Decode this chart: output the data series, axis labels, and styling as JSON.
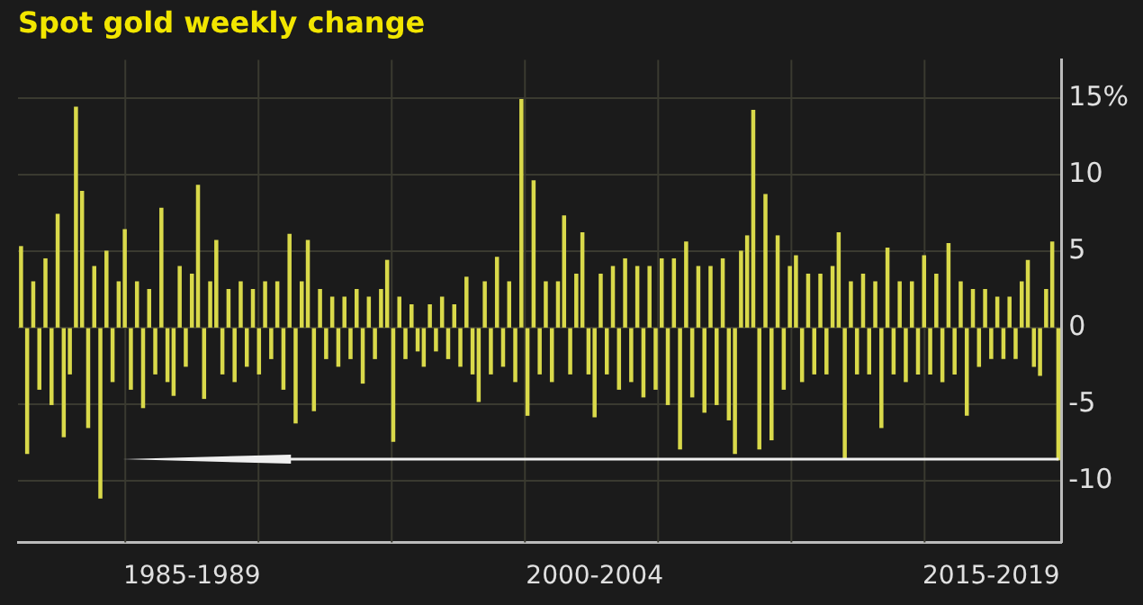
{
  "chart_data": {
    "type": "bar",
    "title": "Spot gold weekly change",
    "color": "#d9d94a",
    "categories": [
      null,
      null,
      null,
      null,
      null,
      null,
      null,
      null,
      null,
      null,
      null,
      null,
      null,
      null,
      null,
      null,
      null,
      null,
      null,
      null,
      null,
      null,
      null,
      null,
      null,
      null,
      null,
      null,
      "1985-1989",
      null,
      null,
      null,
      null,
      null,
      null,
      null,
      null,
      null,
      null,
      null,
      null,
      null,
      null,
      null,
      null,
      null,
      null,
      null,
      null,
      null,
      null,
      null,
      null,
      null,
      null,
      null,
      null,
      null,
      null,
      null,
      null,
      null,
      null,
      null,
      null,
      null,
      null,
      null,
      null,
      null,
      null,
      null,
      null,
      null,
      null,
      null,
      null,
      null,
      null,
      null,
      null,
      null,
      null,
      null,
      null,
      null,
      null,
      null,
      null,
      null,
      null,
      null,
      null,
      null,
      "2000-2004",
      null,
      null,
      null,
      null,
      null,
      null,
      null,
      null,
      null,
      null,
      null,
      null,
      null,
      null,
      null,
      null,
      null,
      null,
      null,
      null,
      null,
      null,
      null,
      null,
      null,
      null,
      null,
      null,
      null,
      null,
      null,
      null,
      null,
      null,
      null,
      null,
      null,
      null,
      null,
      null,
      null,
      null,
      null,
      null,
      null,
      null,
      null,
      null,
      null,
      null,
      null,
      null,
      null,
      null,
      null,
      null,
      null,
      null,
      null,
      null,
      null,
      null,
      null,
      null,
      "2015-2019",
      null,
      null,
      null,
      null,
      null,
      null,
      null,
      null,
      null,
      null,
      null
    ],
    "values": [
      5.3,
      -8.2,
      3,
      -4,
      4.5,
      -5,
      7.4,
      -7.1,
      -3,
      14.4,
      8.9,
      -6.5,
      4,
      -11.1,
      5,
      -3.5,
      3,
      6.4,
      -4,
      3,
      -5.2,
      2.5,
      -3,
      7.8,
      -3.5,
      -4.4,
      4,
      -2.5,
      3.5,
      9.3,
      -4.6,
      3,
      5.7,
      -3,
      2.5,
      -3.5,
      3,
      -2.5,
      2.5,
      -3,
      3,
      -2,
      3,
      -4,
      6.1,
      -6.2,
      3,
      5.7,
      -5.4,
      2.5,
      -2,
      2,
      -2.5,
      2,
      -2,
      2.5,
      -3.6,
      2,
      -2,
      2.5,
      4.4,
      -7.4,
      2,
      -2,
      1.5,
      -1.5,
      -2.5,
      1.5,
      -1.5,
      2,
      -2,
      1.5,
      -2.5,
      3.3,
      -3,
      -4.8,
      3,
      -3,
      4.6,
      -2.5,
      3,
      -3.5,
      14.9,
      -5.7,
      9.6,
      -3,
      3,
      -3.5,
      3,
      7.3,
      -3,
      3.5,
      6.2,
      -3,
      -5.8,
      3.5,
      -3,
      4,
      -4,
      4.5,
      -3.5,
      4,
      -4.5,
      4,
      -4,
      4.5,
      -5,
      4.5,
      -7.9,
      5.6,
      -4.5,
      4,
      -5.5,
      4,
      -5,
      4.5,
      -6,
      -8.2,
      5,
      6,
      14.2,
      -7.9,
      8.7,
      -7.3,
      6,
      -4,
      4,
      4.7,
      -3.5,
      3.5,
      -3,
      3.5,
      -3,
      4,
      6.2,
      -8.5,
      3,
      -3,
      3.5,
      -3,
      3,
      -6.5,
      5.2,
      -3,
      3,
      -3.5,
      3,
      -3,
      4.7,
      -3,
      3.5,
      -3.5,
      5.5,
      -3,
      3,
      -5.7,
      2.5,
      -2.5,
      2.5,
      -2,
      2,
      -2,
      2,
      -2,
      3,
      4.4,
      -2.5,
      -3.1,
      2.5,
      5.6,
      -8.6
    ],
    "ylim": [
      -14,
      17.5
    ],
    "yticks": [
      -10,
      -5,
      0,
      5,
      10,
      {
        "value": 15,
        "label": "15%"
      }
    ],
    "grid": true,
    "legend": false
  }
}
